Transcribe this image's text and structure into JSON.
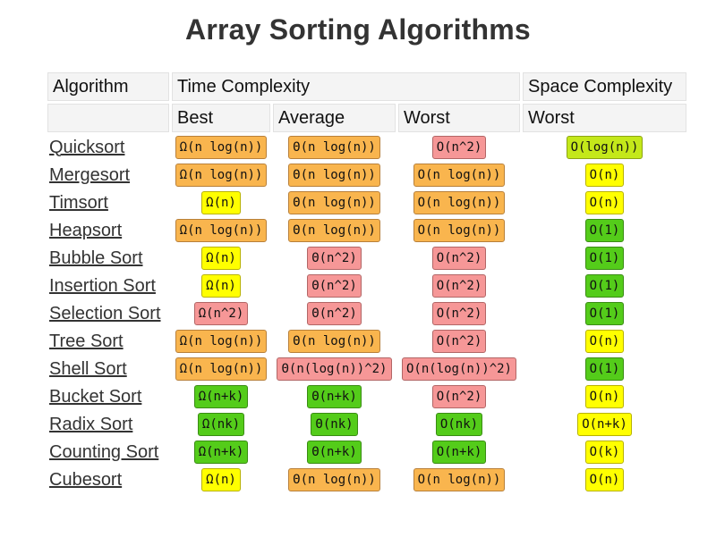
{
  "title": "Array Sorting Algorithms",
  "header": {
    "algorithm": "Algorithm",
    "time_complexity": "Time Complexity",
    "space_complexity": "Space Complexity",
    "best": "Best",
    "average": "Average",
    "worst": "Worst",
    "space_worst": "Worst"
  },
  "colors": {
    "orange": "#f9b54e",
    "yellow": "#ffff00",
    "red": "#f69797",
    "green": "#54cc1a",
    "lime": "#c4e81a"
  },
  "rows": [
    {
      "name": "Quicksort",
      "best": {
        "text": "Ω(n log(n))",
        "color": "orange"
      },
      "average": {
        "text": "Θ(n log(n))",
        "color": "orange"
      },
      "worst": {
        "text": "O(n^2)",
        "color": "red"
      },
      "space": {
        "text": "O(log(n))",
        "color": "lime"
      }
    },
    {
      "name": "Mergesort",
      "best": {
        "text": "Ω(n log(n))",
        "color": "orange"
      },
      "average": {
        "text": "Θ(n log(n))",
        "color": "orange"
      },
      "worst": {
        "text": "O(n log(n))",
        "color": "orange"
      },
      "space": {
        "text": "O(n)",
        "color": "yellow"
      }
    },
    {
      "name": "Timsort",
      "best": {
        "text": "Ω(n)",
        "color": "yellow"
      },
      "average": {
        "text": "Θ(n log(n))",
        "color": "orange"
      },
      "worst": {
        "text": "O(n log(n))",
        "color": "orange"
      },
      "space": {
        "text": "O(n)",
        "color": "yellow"
      }
    },
    {
      "name": "Heapsort",
      "best": {
        "text": "Ω(n log(n))",
        "color": "orange"
      },
      "average": {
        "text": "Θ(n log(n))",
        "color": "orange"
      },
      "worst": {
        "text": "O(n log(n))",
        "color": "orange"
      },
      "space": {
        "text": "O(1)",
        "color": "green"
      }
    },
    {
      "name": "Bubble Sort",
      "best": {
        "text": "Ω(n)",
        "color": "yellow"
      },
      "average": {
        "text": "Θ(n^2)",
        "color": "red"
      },
      "worst": {
        "text": "O(n^2)",
        "color": "red"
      },
      "space": {
        "text": "O(1)",
        "color": "green"
      }
    },
    {
      "name": "Insertion Sort",
      "best": {
        "text": "Ω(n)",
        "color": "yellow"
      },
      "average": {
        "text": "Θ(n^2)",
        "color": "red"
      },
      "worst": {
        "text": "O(n^2)",
        "color": "red"
      },
      "space": {
        "text": "O(1)",
        "color": "green"
      }
    },
    {
      "name": "Selection Sort",
      "best": {
        "text": "Ω(n^2)",
        "color": "red"
      },
      "average": {
        "text": "Θ(n^2)",
        "color": "red"
      },
      "worst": {
        "text": "O(n^2)",
        "color": "red"
      },
      "space": {
        "text": "O(1)",
        "color": "green"
      }
    },
    {
      "name": "Tree Sort",
      "best": {
        "text": "Ω(n log(n))",
        "color": "orange"
      },
      "average": {
        "text": "Θ(n log(n))",
        "color": "orange"
      },
      "worst": {
        "text": "O(n^2)",
        "color": "red"
      },
      "space": {
        "text": "O(n)",
        "color": "yellow"
      }
    },
    {
      "name": "Shell Sort",
      "best": {
        "text": "Ω(n log(n))",
        "color": "orange"
      },
      "average": {
        "text": "Θ(n(log(n))^2)",
        "color": "red"
      },
      "worst": {
        "text": "O(n(log(n))^2)",
        "color": "red"
      },
      "space": {
        "text": "O(1)",
        "color": "green"
      }
    },
    {
      "name": "Bucket Sort",
      "best": {
        "text": "Ω(n+k)",
        "color": "green"
      },
      "average": {
        "text": "Θ(n+k)",
        "color": "green"
      },
      "worst": {
        "text": "O(n^2)",
        "color": "red"
      },
      "space": {
        "text": "O(n)",
        "color": "yellow"
      }
    },
    {
      "name": "Radix Sort",
      "best": {
        "text": "Ω(nk)",
        "color": "green"
      },
      "average": {
        "text": "Θ(nk)",
        "color": "green"
      },
      "worst": {
        "text": "O(nk)",
        "color": "green"
      },
      "space": {
        "text": "O(n+k)",
        "color": "yellow"
      }
    },
    {
      "name": "Counting Sort",
      "best": {
        "text": "Ω(n+k)",
        "color": "green"
      },
      "average": {
        "text": "Θ(n+k)",
        "color": "green"
      },
      "worst": {
        "text": "O(n+k)",
        "color": "green"
      },
      "space": {
        "text": "O(k)",
        "color": "yellow"
      }
    },
    {
      "name": "Cubesort",
      "best": {
        "text": "Ω(n)",
        "color": "yellow"
      },
      "average": {
        "text": "Θ(n log(n))",
        "color": "orange"
      },
      "worst": {
        "text": "O(n log(n))",
        "color": "orange"
      },
      "space": {
        "text": "O(n)",
        "color": "yellow"
      }
    }
  ]
}
